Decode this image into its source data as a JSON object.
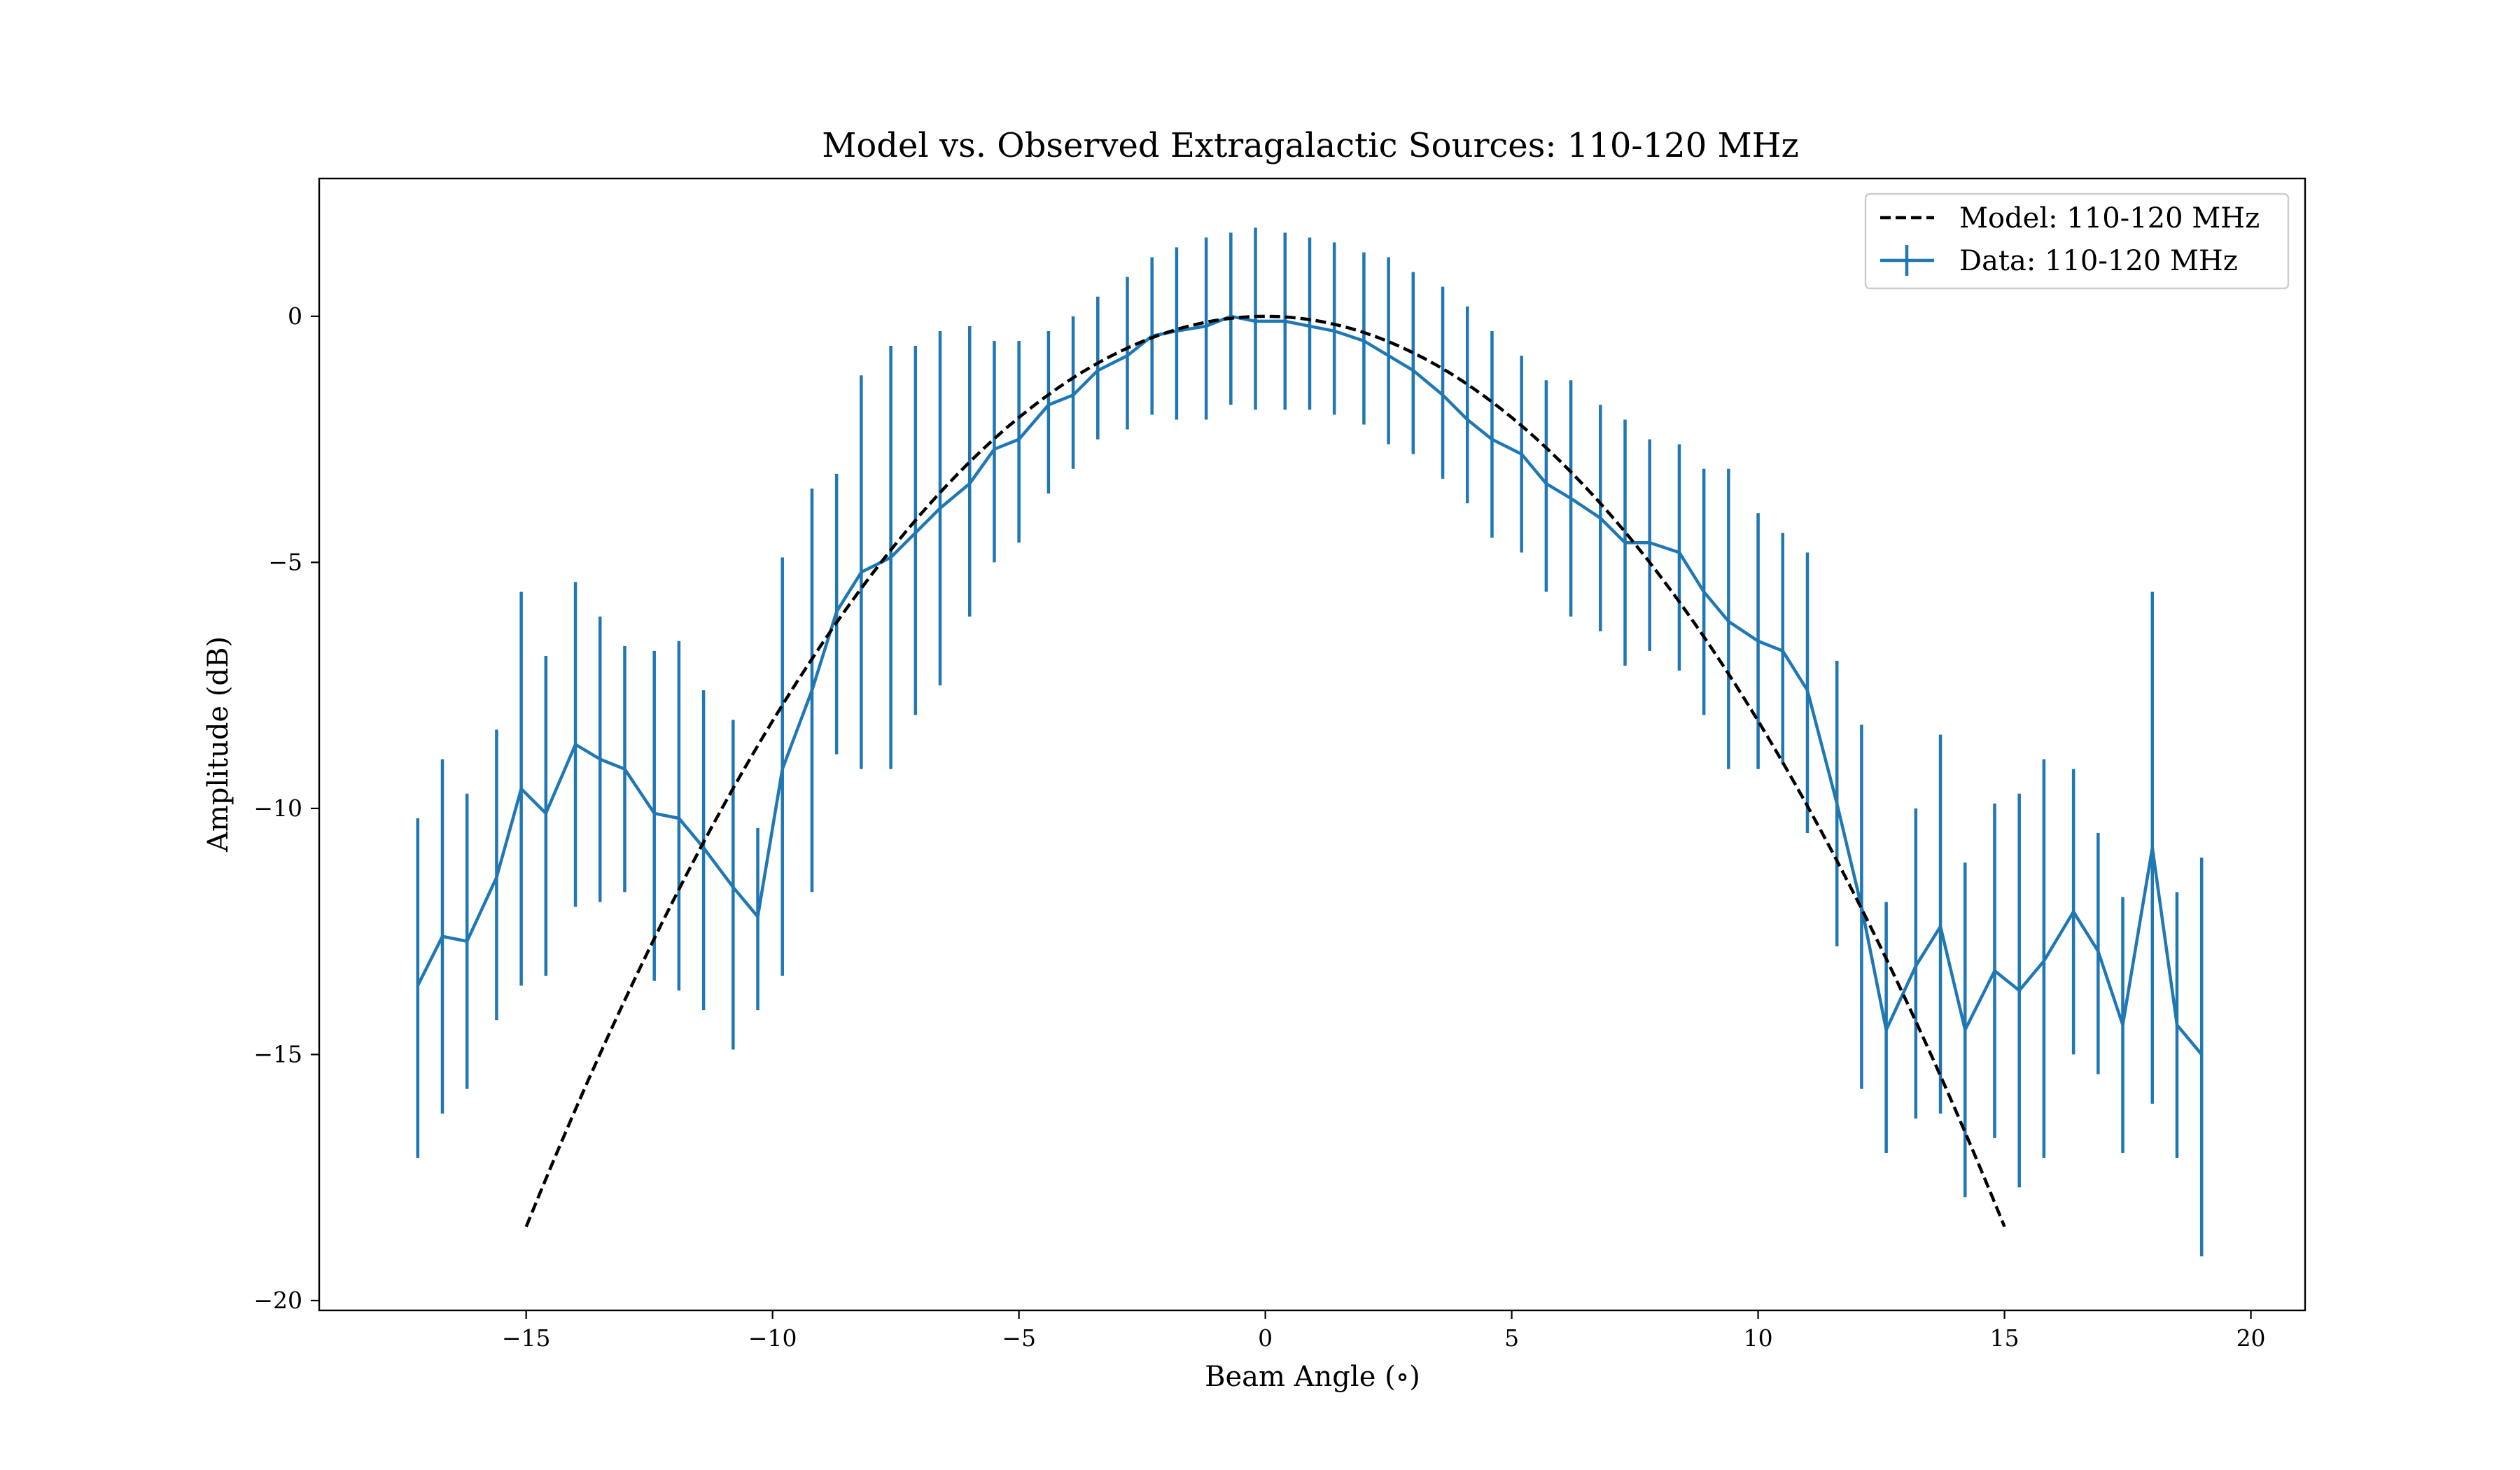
{
  "chart_data": {
    "type": "line",
    "title": "Model vs. Observed Extragalactic Sources: 110-120 MHz",
    "xlabel": "Beam Angle ($^\\circ$)",
    "xlabel_display": "Beam Angle (∘)",
    "ylabel": "Amplitude (dB)",
    "xlim": [
      -19.2,
      21.1
    ],
    "ylim": [
      -20.2,
      2.8
    ],
    "x_ticks": [
      -15,
      -10,
      -5,
      0,
      5,
      10,
      15,
      20
    ],
    "x_tick_labels": [
      "−15",
      "−10",
      "−5",
      "0",
      "5",
      "10",
      "15",
      "20"
    ],
    "y_ticks": [
      0,
      -5,
      -10,
      -15,
      -20
    ],
    "y_tick_labels": [
      "0",
      "−5",
      "−10",
      "−15",
      "−20"
    ],
    "grid": false,
    "legend_position": "top-right",
    "series": [
      {
        "name": "Model: 110-120 MHz",
        "style": "dashed",
        "color": "#000000",
        "model": "gaussian_db",
        "peak_db": 0,
        "x_range": [
          -15,
          15
        ],
        "amplitude_at_x15": -18.5
      },
      {
        "name": "Data: 110-120 MHz",
        "style": "solid-errorbar",
        "color": "#1f77b4",
        "x": [
          -17.2,
          -16.7,
          -16.2,
          -15.6,
          -15.1,
          -14.6,
          -14.0,
          -13.5,
          -13.0,
          -12.4,
          -11.9,
          -11.4,
          -10.8,
          -10.3,
          -9.8,
          -9.2,
          -8.7,
          -8.2,
          -7.6,
          -7.1,
          -6.6,
          -6.0,
          -5.5,
          -5.0,
          -4.4,
          -3.9,
          -3.4,
          -2.8,
          -2.3,
          -1.8,
          -1.2,
          -0.7,
          -0.2,
          0.4,
          0.9,
          1.4,
          2.0,
          2.5,
          3.0,
          3.6,
          4.1,
          4.6,
          5.2,
          5.7,
          6.2,
          6.8,
          7.3,
          7.8,
          8.4,
          8.9,
          9.4,
          10.0,
          10.5,
          11.0,
          11.6,
          12.1,
          12.6,
          13.2,
          13.7,
          14.2,
          14.8,
          15.3,
          15.8,
          16.4,
          16.9,
          17.4,
          18.0,
          18.5,
          19.0
        ],
        "y": [
          -13.6,
          -12.6,
          -12.7,
          -11.4,
          -9.6,
          -10.1,
          -8.7,
          -9.0,
          -9.2,
          -10.1,
          -10.2,
          -10.8,
          -11.6,
          -12.2,
          -9.2,
          -7.6,
          -6.0,
          -5.2,
          -4.9,
          -4.4,
          -3.9,
          -3.4,
          -2.7,
          -2.5,
          -1.8,
          -1.6,
          -1.1,
          -0.8,
          -0.4,
          -0.3,
          -0.2,
          0.0,
          -0.1,
          -0.1,
          -0.2,
          -0.3,
          -0.5,
          -0.8,
          -1.1,
          -1.6,
          -2.1,
          -2.5,
          -2.8,
          -3.4,
          -3.7,
          -4.1,
          -4.6,
          -4.6,
          -4.8,
          -5.6,
          -6.2,
          -6.6,
          -6.8,
          -7.6,
          -9.9,
          -12.0,
          -14.5,
          -13.2,
          -12.4,
          -14.5,
          -13.3,
          -13.7,
          -13.1,
          -12.1,
          -12.9,
          -14.4,
          -10.8,
          -14.4,
          -15.0
        ],
        "err_low": [
          -17.1,
          -16.2,
          -15.7,
          -14.3,
          -13.6,
          -13.4,
          -12.0,
          -11.9,
          -11.7,
          -13.5,
          -13.7,
          -14.1,
          -14.9,
          -14.1,
          -13.4,
          -11.7,
          -8.9,
          -9.2,
          -9.2,
          -8.1,
          -7.5,
          -6.1,
          -5.0,
          -4.6,
          -3.6,
          -3.1,
          -2.5,
          -2.3,
          -2.0,
          -2.1,
          -2.1,
          -1.8,
          -1.9,
          -1.9,
          -1.9,
          -2.0,
          -2.2,
          -2.6,
          -2.8,
          -3.3,
          -3.8,
          -4.5,
          -4.8,
          -5.6,
          -6.1,
          -6.4,
          -7.1,
          -6.8,
          -7.2,
          -8.1,
          -9.2,
          -9.2,
          -9.1,
          -10.5,
          -12.8,
          -15.7,
          -17.0,
          -16.3,
          -16.2,
          -17.9,
          -16.7,
          -17.7,
          -17.1,
          -15.0,
          -15.4,
          -17.0,
          -16.0,
          -17.1,
          -19.1
        ],
        "err_high": [
          -10.2,
          -9.0,
          -9.7,
          -8.4,
          -5.6,
          -6.9,
          -5.4,
          -6.1,
          -6.7,
          -6.8,
          -6.6,
          -7.6,
          -8.2,
          -10.4,
          -4.9,
          -3.5,
          -3.2,
          -1.2,
          -0.6,
          -0.6,
          -0.3,
          -0.2,
          -0.5,
          -0.5,
          -0.3,
          0.0,
          0.4,
          0.8,
          1.2,
          1.4,
          1.6,
          1.7,
          1.8,
          1.7,
          1.6,
          1.5,
          1.3,
          1.2,
          0.9,
          0.6,
          0.2,
          -0.3,
          -0.8,
          -1.3,
          -1.3,
          -1.8,
          -2.1,
          -2.5,
          -2.6,
          -3.1,
          -3.1,
          -4.0,
          -4.4,
          -4.8,
          -7.0,
          -8.3,
          -11.9,
          -10.0,
          -8.5,
          -11.1,
          -9.9,
          -9.7,
          -9.0,
          -9.2,
          -10.5,
          -11.8,
          -5.6,
          -11.7,
          -11.0
        ]
      }
    ]
  }
}
